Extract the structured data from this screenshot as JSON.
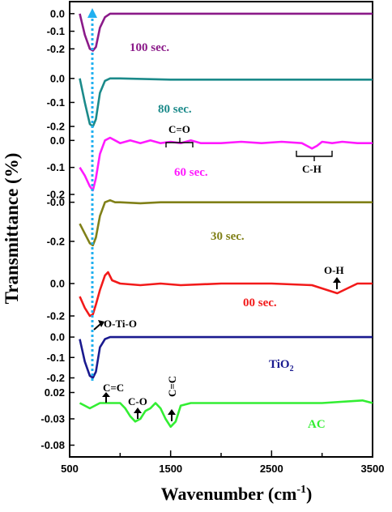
{
  "chart_data": {
    "type": "line",
    "title": "",
    "xlabel": "Wavenumber (cm-1)",
    "xlabel_main": "Wavenumber (cm",
    "xlabel_sup": "-1",
    "xlabel_close": ")",
    "ylabel": "Transmittance (%)",
    "xlim": [
      500,
      3500
    ],
    "x_ticks": [
      "500",
      "1500",
      "2500",
      "3500"
    ],
    "grid": false,
    "legend": "none (series labelled directly on the plot)",
    "series": [
      {
        "name": "100 sec.",
        "color": "#8b1a89",
        "ylim": [
          -0.3,
          0.05
        ],
        "y_ticks": [
          "0.0",
          "-0.1",
          "-0.2"
        ],
        "x": [
          600,
          650,
          700,
          730,
          760,
          800,
          850,
          900,
          1000,
          1500,
          2000,
          2500,
          3000,
          3500
        ],
        "y": [
          0.0,
          -0.12,
          -0.2,
          -0.21,
          -0.19,
          -0.08,
          -0.02,
          0.0,
          0.0,
          0.0,
          0.0,
          0.0,
          0.0,
          0.0
        ]
      },
      {
        "name": "80 sec.",
        "color": "#1b8a8a",
        "ylim": [
          -0.22,
          0.05
        ],
        "y_ticks": [
          "0.0",
          "-0.1",
          "-0.2"
        ],
        "x": [
          600,
          650,
          700,
          730,
          760,
          800,
          850,
          900,
          1000,
          1500,
          2000,
          2500,
          3000,
          3500
        ],
        "y": [
          0.0,
          -0.1,
          -0.19,
          -0.2,
          -0.17,
          -0.06,
          -0.01,
          0.0,
          0.0,
          -0.005,
          -0.005,
          -0.005,
          -0.005,
          -0.005
        ]
      },
      {
        "name": "60 sec.",
        "color": "#ff1aff",
        "ylim": [
          -0.2,
          0.04
        ],
        "y_ticks": [
          "0.0",
          "-0.1",
          "-0.2"
        ],
        "x": [
          600,
          650,
          700,
          730,
          760,
          800,
          850,
          900,
          950,
          1000,
          1100,
          1200,
          1300,
          1400,
          1500,
          1600,
          1700,
          1800,
          2000,
          2200,
          2400,
          2600,
          2800,
          2850,
          2900,
          2950,
          3000,
          3100,
          3200,
          3350,
          3500
        ],
        "y": [
          -0.1,
          -0.13,
          -0.17,
          -0.185,
          -0.14,
          -0.05,
          0.0,
          0.01,
          0.0,
          -0.01,
          0.0,
          -0.01,
          0.0,
          -0.01,
          -0.005,
          -0.01,
          0.0,
          -0.01,
          -0.01,
          -0.005,
          -0.01,
          -0.005,
          -0.01,
          -0.02,
          -0.03,
          -0.02,
          -0.005,
          -0.01,
          -0.005,
          -0.01,
          -0.01
        ]
      },
      {
        "name": "30 sec.",
        "color": "#808018",
        "ylim": [
          -0.25,
          0.04
        ],
        "y_ticks": [
          "-0.0",
          "-0.2"
        ],
        "x": [
          600,
          650,
          700,
          730,
          760,
          800,
          850,
          900,
          950,
          1000,
          1200,
          1400,
          1600,
          2000,
          2500,
          3000,
          3500
        ],
        "y": [
          -0.11,
          -0.16,
          -0.21,
          -0.22,
          -0.18,
          -0.07,
          0.0,
          0.01,
          0.0,
          0.0,
          -0.005,
          0.0,
          0.0,
          0.0,
          0.0,
          0.0,
          0.0
        ]
      },
      {
        "name": "00 sec.",
        "color": "#f21a1a",
        "ylim": [
          -0.25,
          0.1
        ],
        "y_ticks": [
          "0.0",
          "-0.2"
        ],
        "x": [
          600,
          650,
          700,
          730,
          760,
          800,
          850,
          880,
          920,
          1000,
          1200,
          1400,
          1600,
          2000,
          2500,
          2900,
          3050,
          3150,
          3250,
          3350,
          3500
        ],
        "y": [
          -0.08,
          -0.15,
          -0.2,
          -0.19,
          -0.13,
          -0.04,
          0.05,
          0.07,
          0.02,
          0.0,
          -0.01,
          0.0,
          -0.01,
          0.0,
          0.0,
          -0.01,
          -0.04,
          -0.06,
          -0.03,
          0.0,
          0.0
        ]
      },
      {
        "name": "TiO2",
        "color": "#1a1a8f",
        "ylim": [
          -0.23,
          0.04
        ],
        "y_ticks": [
          "0.0",
          "-0.1",
          "-0.2"
        ],
        "x": [
          600,
          650,
          700,
          730,
          760,
          800,
          850,
          900,
          1000,
          1500,
          2000,
          2500,
          3000,
          3500
        ],
        "y": [
          -0.01,
          -0.12,
          -0.19,
          -0.2,
          -0.17,
          -0.05,
          -0.01,
          0.0,
          0.0,
          0.0,
          0.0,
          0.0,
          0.0,
          0.0
        ]
      },
      {
        "name": "AC",
        "color": "#33ee33",
        "ylim": [
          -0.09,
          0.03
        ],
        "y_ticks": [
          "0.02",
          "-0.03",
          "-0.08"
        ],
        "x": [
          600,
          700,
          800,
          900,
          1000,
          1050,
          1100,
          1150,
          1200,
          1250,
          1300,
          1350,
          1400,
          1450,
          1500,
          1550,
          1600,
          1700,
          2000,
          2500,
          3000,
          3400,
          3500
        ],
        "y": [
          0.0,
          -0.01,
          0.0,
          0.0,
          0.0,
          -0.01,
          -0.025,
          -0.035,
          -0.03,
          -0.015,
          -0.01,
          0.0,
          -0.01,
          -0.03,
          -0.045,
          -0.035,
          -0.005,
          0.0,
          0.0,
          0.0,
          0.0,
          0.005,
          0.0
        ]
      }
    ],
    "label_tio2_main": "TiO",
    "label_tio2_sub": "2",
    "guide_line": {
      "x": 730,
      "color": "#20b0f0"
    },
    "annotations": [
      "C=O",
      "C-H",
      "O-H",
      "O-Ti-O",
      "C=C",
      "C-O",
      "C=C"
    ]
  }
}
